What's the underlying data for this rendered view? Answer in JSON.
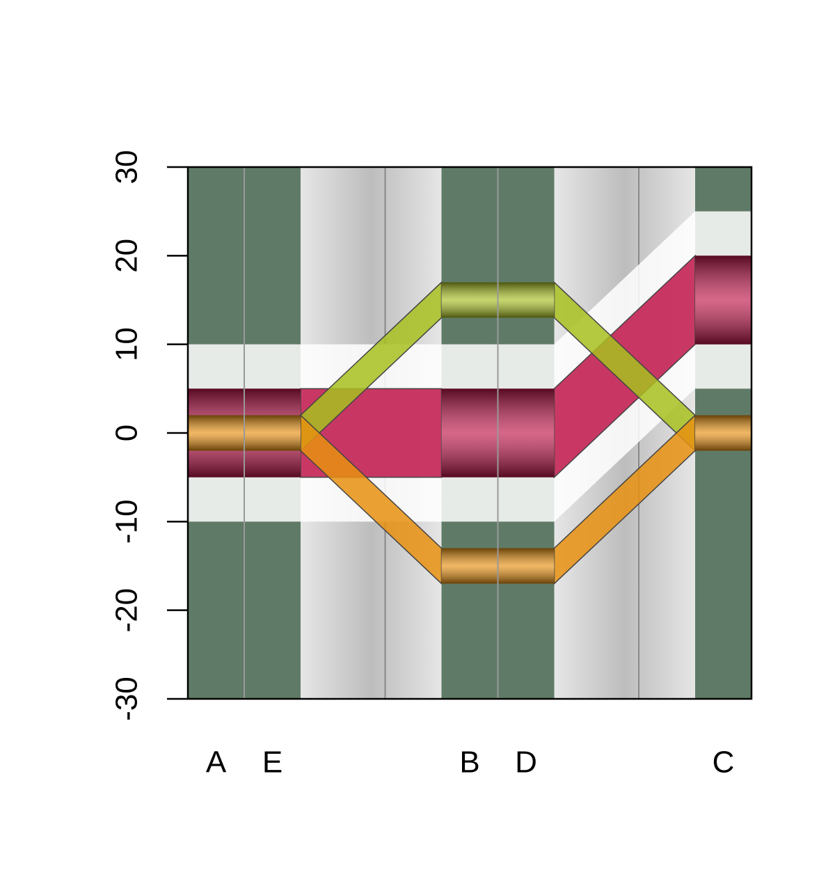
{
  "chart_data": {
    "type": "band",
    "categories": [
      "A",
      "E",
      "B",
      "D",
      "C"
    ],
    "series": [
      {
        "color": "#c0154a",
        "width": 5,
        "values": [
          0,
          0,
          0,
          0,
          15
        ]
      },
      {
        "color": "#a8c020",
        "width": 2,
        "values": [
          0,
          0,
          15,
          15,
          0
        ]
      },
      {
        "color": "#e89010",
        "width": 2,
        "values": [
          0,
          0,
          -15,
          -15,
          0
        ]
      }
    ],
    "ylim": [
      -30,
      30
    ],
    "yticks": [
      -30,
      -20,
      -10,
      0,
      10,
      20,
      30
    ]
  }
}
